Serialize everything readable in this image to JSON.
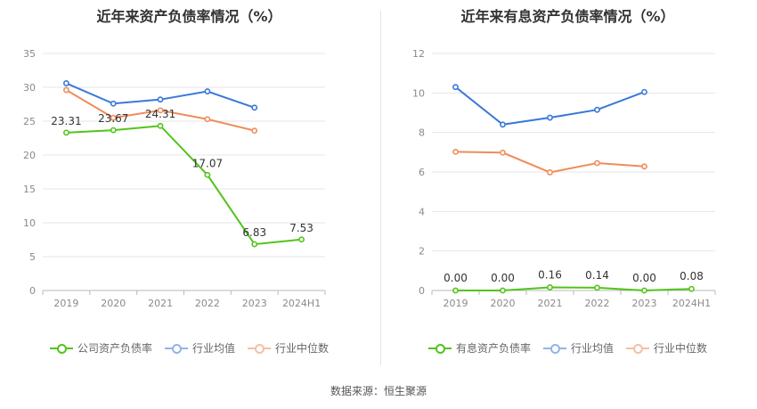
{
  "source": "数据来源：恒生聚源",
  "chart_data": [
    {
      "type": "line",
      "title": "近年来资产负债率情况（%）",
      "categories": [
        "2019",
        "2020",
        "2021",
        "2022",
        "2023",
        "2024H1"
      ],
      "ylim": [
        0,
        35
      ],
      "yticks": [
        "0",
        "5",
        "10",
        "15",
        "20",
        "25",
        "30",
        "35"
      ],
      "grid": true,
      "legend_position": "bottom",
      "series": [
        {
          "name": "公司资产负债率",
          "color": "#52c41a",
          "values": [
            23.31,
            23.67,
            24.31,
            17.07,
            6.83,
            7.53
          ],
          "labels": [
            "23.31",
            "23.67",
            "24.31",
            "17.07",
            "6.83",
            "7.53"
          ],
          "legend_style": "filled"
        },
        {
          "name": "行业均值",
          "color": "#3a78d8",
          "values": [
            30.6,
            27.6,
            28.2,
            29.4,
            27.0,
            null
          ],
          "legend_style": "faded"
        },
        {
          "name": "行业中位数",
          "color": "#f08c5a",
          "values": [
            29.6,
            25.5,
            26.6,
            25.3,
            23.6,
            null
          ],
          "legend_style": "faded"
        }
      ]
    },
    {
      "type": "line",
      "title": "近年来有息资产负债率情况（%）",
      "categories": [
        "2019",
        "2020",
        "2021",
        "2022",
        "2023",
        "2024H1"
      ],
      "ylim": [
        0,
        12
      ],
      "yticks": [
        "0",
        "2",
        "4",
        "6",
        "8",
        "10",
        "12"
      ],
      "grid": true,
      "legend_position": "bottom",
      "series": [
        {
          "name": "有息资产负债率",
          "color": "#52c41a",
          "values": [
            0.0,
            0.0,
            0.16,
            0.14,
            0.0,
            0.08
          ],
          "labels": [
            "0.00",
            "0.00",
            "0.16",
            "0.14",
            "0.00",
            "0.08"
          ],
          "legend_style": "filled"
        },
        {
          "name": "行业均值",
          "color": "#3a78d8",
          "values": [
            10.3,
            8.4,
            8.75,
            9.15,
            10.05,
            null
          ],
          "legend_style": "faded"
        },
        {
          "name": "行业中位数",
          "color": "#f08c5a",
          "values": [
            7.02,
            6.98,
            5.98,
            6.45,
            6.28,
            null
          ],
          "legend_style": "faded"
        }
      ]
    }
  ]
}
